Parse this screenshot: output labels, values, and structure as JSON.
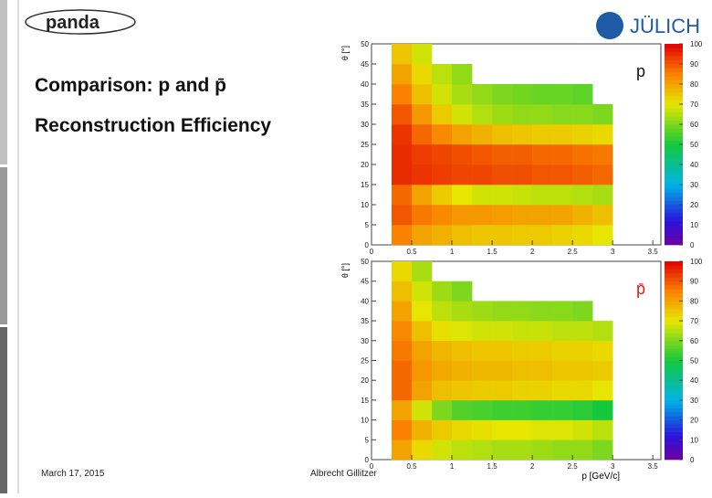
{
  "slide": {
    "logo_left": "panda",
    "logo_right": "JÜLICH",
    "title_line1": "Comparison: p and p̄",
    "title_line2": "Reconstruction Efficiency",
    "date": "March 17, 2015",
    "author": "Albrecht Gillitzer"
  },
  "chart_data": [
    {
      "type": "heatmap",
      "label": "p",
      "label_color": "#111111",
      "ylabel": "θ [°]",
      "xbins": [
        0.25,
        0.5,
        0.75,
        1,
        1.25,
        1.5,
        1.75,
        2,
        2.25,
        2.5,
        2.75,
        3
      ],
      "ybins": [
        0,
        5,
        10,
        15,
        20,
        25,
        30,
        35,
        40,
        45,
        50
      ],
      "values": [
        [
          85,
          80,
          78,
          76,
          75,
          75,
          74,
          74,
          73,
          72,
          70
        ],
        [
          90,
          86,
          84,
          82,
          82,
          81,
          80,
          80,
          80,
          78,
          76
        ],
        [
          88,
          80,
          74,
          70,
          68,
          68,
          67,
          66,
          66,
          65,
          64
        ],
        [
          95,
          94,
          93,
          92,
          92,
          91,
          91,
          90,
          90,
          89,
          88
        ],
        [
          95,
          93,
          92,
          91,
          90,
          89,
          89,
          88,
          88,
          87,
          86
        ],
        [
          94,
          88,
          84,
          80,
          78,
          76,
          75,
          74,
          74,
          73,
          72
        ],
        [
          90,
          82,
          74,
          68,
          65,
          63,
          62,
          62,
          61,
          61,
          60
        ],
        [
          85,
          76,
          68,
          64,
          62,
          60,
          59,
          58,
          58,
          57,
          null
        ],
        [
          80,
          72,
          66,
          62,
          null,
          null,
          null,
          null,
          null,
          null,
          null
        ],
        [
          75,
          68,
          null,
          null,
          null,
          null,
          null,
          null,
          null,
          null,
          null
        ]
      ],
      "xlim": [
        0,
        3.6
      ],
      "ylim": [
        0,
        50
      ],
      "zlim": [
        0,
        100
      ],
      "xticks": [
        0,
        0.5,
        1,
        1.5,
        2,
        2.5,
        3,
        3.5
      ],
      "yticks": [
        0,
        5,
        10,
        15,
        20,
        25,
        30,
        35,
        40,
        45,
        50
      ],
      "zticks": [
        0,
        10,
        20,
        30,
        40,
        50,
        60,
        70,
        80,
        90,
        100
      ]
    },
    {
      "type": "heatmap",
      "label": "p̄",
      "label_color": "#d42020",
      "ylabel": "θ [°]",
      "xlabel": "p [GeV/c]",
      "xbins": [
        0.25,
        0.5,
        0.75,
        1,
        1.25,
        1.5,
        1.75,
        2,
        2.25,
        2.5,
        2.75,
        3
      ],
      "ybins": [
        0,
        5,
        10,
        15,
        20,
        25,
        30,
        35,
        40,
        45,
        50
      ],
      "values": [
        [
          80,
          72,
          68,
          66,
          65,
          64,
          64,
          63,
          62,
          62,
          60
        ],
        [
          85,
          78,
          74,
          72,
          71,
          70,
          70,
          69,
          69,
          68,
          66
        ],
        [
          80,
          68,
          60,
          56,
          55,
          54,
          54,
          53,
          53,
          52,
          50
        ],
        [
          88,
          80,
          76,
          75,
          74,
          74,
          73,
          73,
          72,
          72,
          70
        ],
        [
          88,
          82,
          79,
          78,
          77,
          77,
          76,
          76,
          75,
          75,
          74
        ],
        [
          86,
          80,
          77,
          76,
          75,
          75,
          74,
          74,
          73,
          73,
          72
        ],
        [
          84,
          76,
          71,
          69,
          68,
          68,
          67,
          67,
          66,
          66,
          65
        ],
        [
          80,
          70,
          66,
          64,
          63,
          62,
          62,
          61,
          61,
          60,
          null
        ],
        [
          76,
          68,
          63,
          60,
          null,
          null,
          null,
          null,
          null,
          null,
          null
        ],
        [
          72,
          64,
          null,
          null,
          null,
          null,
          null,
          null,
          null,
          null,
          null
        ]
      ],
      "xlim": [
        0,
        3.6
      ],
      "ylim": [
        0,
        50
      ],
      "zlim": [
        0,
        100
      ],
      "xticks": [
        0,
        0.5,
        1,
        1.5,
        2,
        2.5,
        3,
        3.5
      ],
      "yticks": [
        0,
        5,
        10,
        15,
        20,
        25,
        30,
        35,
        40,
        45,
        50
      ],
      "zticks": [
        0,
        10,
        20,
        30,
        40,
        50,
        60,
        70,
        80,
        90,
        100
      ]
    }
  ]
}
